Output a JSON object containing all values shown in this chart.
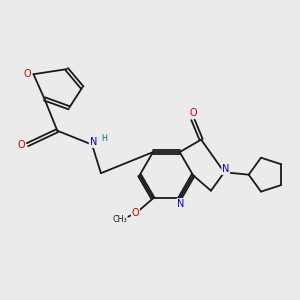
{
  "bg_color": "#ebebeb",
  "bond_color": "#1a1a1a",
  "atom_colors": {
    "O": "#cc0000",
    "N": "#0000bb",
    "H": "#007070",
    "C": "#1a1a1a"
  },
  "lw": 1.3,
  "dbo": 0.055,
  "fs": 7.0,
  "fs_small": 5.8
}
